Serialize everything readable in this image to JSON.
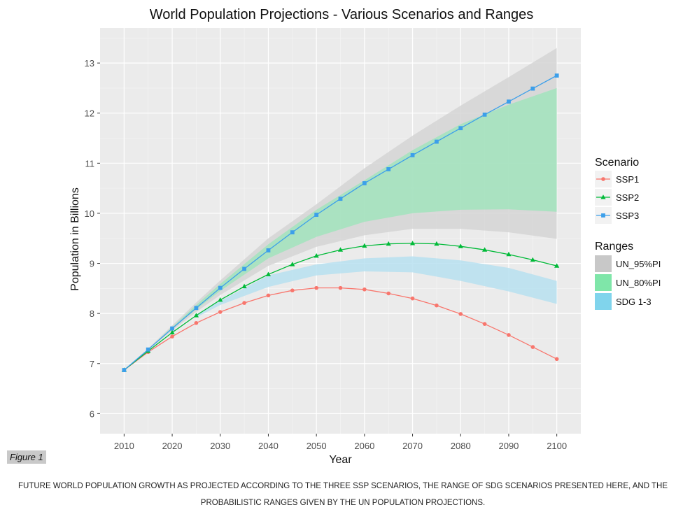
{
  "figure": {
    "label": "Figure 1",
    "caption": "FUTURE WORLD POPULATION GROWTH AS PROJECTED ACCORDING TO THE THREE SSP SCENARIOS, THE RANGE OF SDG SCENARIOS PRESENTED HERE, AND THE PROBABILISTIC RANGES GIVEN BY THE UN POPULATION PROJECTIONS."
  },
  "chart_data": {
    "type": "line",
    "title": "World Population Projections - Various Scenarios and Ranges",
    "xlabel": "Year",
    "ylabel": "Population in Billions",
    "xlim": [
      2005,
      2105
    ],
    "ylim": [
      5.6,
      13.7
    ],
    "x_ticks": [
      2010,
      2020,
      2030,
      2040,
      2050,
      2060,
      2070,
      2080,
      2090,
      2100
    ],
    "y_ticks": [
      6,
      7,
      8,
      9,
      10,
      11,
      12,
      13
    ],
    "grid": true,
    "legend_placement": "right",
    "scenario_legend_title": "Scenario",
    "ranges_legend_title": "Ranges",
    "x": [
      2010,
      2015,
      2020,
      2025,
      2030,
      2035,
      2040,
      2045,
      2050,
      2055,
      2060,
      2065,
      2070,
      2075,
      2080,
      2085,
      2090,
      2095,
      2100
    ],
    "series": [
      {
        "name": "SSP1",
        "color": "#F8766D",
        "marker": "circle",
        "values": [
          6.87,
          7.23,
          7.54,
          7.81,
          8.03,
          8.21,
          8.36,
          8.46,
          8.51,
          8.51,
          8.48,
          8.4,
          8.3,
          8.16,
          7.99,
          7.79,
          7.57,
          7.33,
          7.09
        ]
      },
      {
        "name": "SSP2",
        "color": "#00BA38",
        "marker": "triangle",
        "values": [
          6.87,
          7.25,
          7.62,
          7.96,
          8.27,
          8.54,
          8.78,
          8.98,
          9.15,
          9.27,
          9.35,
          9.39,
          9.4,
          9.39,
          9.34,
          9.27,
          9.18,
          9.07,
          8.95
        ]
      },
      {
        "name": "SSP3",
        "color": "#3C9FEA",
        "marker": "square",
        "values": [
          6.87,
          7.28,
          7.7,
          8.11,
          8.51,
          8.89,
          9.26,
          9.62,
          9.97,
          10.29,
          10.6,
          10.88,
          11.16,
          11.43,
          11.7,
          11.97,
          12.23,
          12.49,
          12.75
        ]
      }
    ],
    "ranges": [
      {
        "name": "UN_95%PI",
        "color": "#D5D5D5",
        "x": [
          2015,
          2020,
          2025,
          2030,
          2040,
          2050,
          2060,
          2070,
          2080,
          2090,
          2100
        ],
        "lower": [
          7.27,
          7.66,
          8.03,
          8.37,
          8.95,
          9.33,
          9.56,
          9.69,
          9.69,
          9.62,
          9.49
        ],
        "upper": [
          7.3,
          7.76,
          8.22,
          8.66,
          9.5,
          10.18,
          10.9,
          11.55,
          12.15,
          12.72,
          13.3
        ]
      },
      {
        "name": "UN_80%PI",
        "color": "#A2E4BD",
        "x": [
          2015,
          2020,
          2025,
          2030,
          2040,
          2050,
          2060,
          2070,
          2080,
          2090,
          2100
        ],
        "lower": [
          7.28,
          7.7,
          8.08,
          8.45,
          9.1,
          9.53,
          9.83,
          10.0,
          10.07,
          10.08,
          10.03
        ],
        "upper": [
          7.29,
          7.73,
          8.17,
          8.59,
          9.38,
          10.07,
          10.66,
          11.26,
          11.78,
          12.17,
          12.5
        ]
      },
      {
        "name": "SDG 1-3",
        "color": "#B7E1F0",
        "x": [
          2025,
          2030,
          2040,
          2050,
          2060,
          2070,
          2080,
          2090,
          2100
        ],
        "lower": [
          7.92,
          8.17,
          8.53,
          8.76,
          8.84,
          8.82,
          8.65,
          8.44,
          8.19
        ],
        "upper": [
          7.98,
          8.25,
          8.76,
          8.98,
          9.1,
          9.14,
          9.06,
          8.91,
          8.65
        ]
      }
    ]
  }
}
